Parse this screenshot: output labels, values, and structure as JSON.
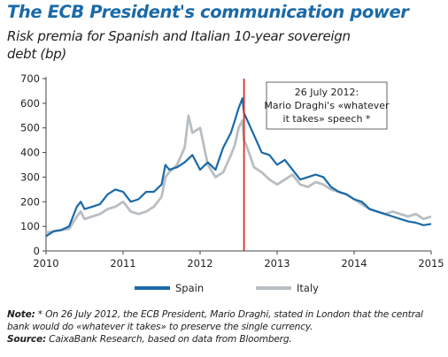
{
  "header": {
    "title": "The ECB President's communication power",
    "subtitle": "Risk premia for Spanish and Italian 10-year sovereign debt (bp)"
  },
  "chart_data": {
    "type": "line",
    "title": "The ECB President's communication power",
    "subtitle": "Risk premia for Spanish and Italian 10-year sovereign debt (bp)",
    "xlabel": "",
    "ylabel": "",
    "xlim": [
      2010,
      2015
    ],
    "ylim": [
      0,
      700
    ],
    "x_ticks": [
      2010,
      2011,
      2012,
      2013,
      2014,
      2015
    ],
    "y_ticks": [
      0,
      100,
      200,
      300,
      400,
      500,
      600,
      700
    ],
    "grid": false,
    "legend_position": "bottom",
    "colors": {
      "spain": "#1a6aa8",
      "italy": "#b9bec2",
      "event_line": "#d6312a"
    },
    "series": [
      {
        "name": "Spain",
        "x": [
          2010.0,
          2010.1,
          2010.2,
          2010.3,
          2010.4,
          2010.45,
          2010.5,
          2010.6,
          2010.7,
          2010.8,
          2010.9,
          2011.0,
          2011.1,
          2011.2,
          2011.3,
          2011.4,
          2011.5,
          2011.55,
          2011.6,
          2011.7,
          2011.8,
          2011.9,
          2012.0,
          2012.1,
          2012.2,
          2012.3,
          2012.4,
          2012.45,
          2012.5,
          2012.55,
          2012.57,
          2012.6,
          2012.7,
          2012.8,
          2012.9,
          2013.0,
          2013.1,
          2013.2,
          2013.3,
          2013.4,
          2013.5,
          2013.6,
          2013.7,
          2013.8,
          2013.9,
          2014.0,
          2014.1,
          2014.2,
          2014.3,
          2014.4,
          2014.5,
          2014.6,
          2014.7,
          2014.8,
          2014.9,
          2015.0
        ],
        "values": [
          60,
          80,
          85,
          100,
          180,
          200,
          170,
          180,
          190,
          230,
          250,
          240,
          200,
          210,
          240,
          240,
          270,
          350,
          330,
          340,
          360,
          390,
          330,
          360,
          330,
          420,
          480,
          530,
          580,
          620,
          560,
          540,
          470,
          400,
          390,
          350,
          370,
          330,
          290,
          300,
          310,
          300,
          260,
          240,
          230,
          210,
          200,
          170,
          160,
          150,
          140,
          130,
          120,
          115,
          105,
          110
        ]
      },
      {
        "name": "Italy",
        "x": [
          2010.0,
          2010.1,
          2010.2,
          2010.3,
          2010.4,
          2010.45,
          2010.5,
          2010.6,
          2010.7,
          2010.8,
          2010.9,
          2011.0,
          2011.1,
          2011.2,
          2011.3,
          2011.4,
          2011.5,
          2011.55,
          2011.6,
          2011.7,
          2011.8,
          2011.85,
          2011.9,
          2012.0,
          2012.1,
          2012.2,
          2012.3,
          2012.4,
          2012.45,
          2012.5,
          2012.55,
          2012.57,
          2012.6,
          2012.7,
          2012.8,
          2012.9,
          2013.0,
          2013.1,
          2013.2,
          2013.3,
          2013.4,
          2013.5,
          2013.6,
          2013.7,
          2013.8,
          2013.9,
          2014.0,
          2014.1,
          2014.2,
          2014.3,
          2014.4,
          2014.5,
          2014.6,
          2014.7,
          2014.8,
          2014.9,
          2015.0
        ],
        "values": [
          75,
          80,
          85,
          90,
          140,
          160,
          130,
          140,
          150,
          170,
          180,
          200,
          160,
          150,
          160,
          180,
          220,
          300,
          320,
          350,
          420,
          550,
          480,
          500,
          350,
          300,
          320,
          390,
          430,
          500,
          530,
          450,
          430,
          340,
          320,
          290,
          270,
          290,
          310,
          270,
          260,
          280,
          270,
          250,
          240,
          230,
          210,
          190,
          170,
          160,
          150,
          160,
          150,
          140,
          150,
          130,
          140
        ]
      }
    ],
    "annotations": [
      {
        "x": 2012.57,
        "lines": [
          "26 July 2012:",
          "Mario Draghi's «whatever",
          "it takes» speech *"
        ]
      }
    ]
  },
  "note": {
    "note_label": "Note:",
    "note_text": " * On 26 July 2012, the ECB President, Mario Draghi, stated in London that the central bank would do «whatever it takes» to preserve the single currency.",
    "source_label": "Source:",
    "source_text": " CaixaBank Research, based on data from Bloomberg."
  }
}
